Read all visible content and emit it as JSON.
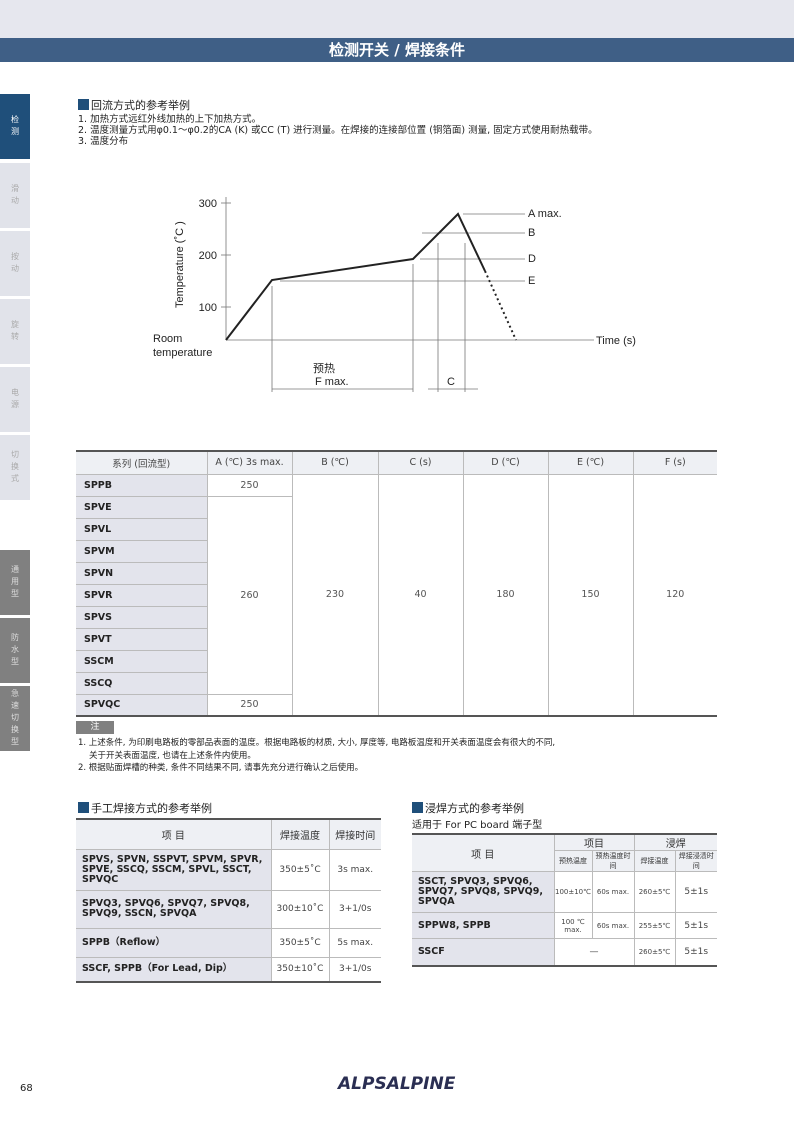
{
  "header": {
    "title": "检测开关 / 焊接条件"
  },
  "sidebar": {
    "tabs": [
      {
        "label": "检测",
        "state": "active"
      },
      {
        "label": "滑动",
        "state": "inactive"
      },
      {
        "label": "按动",
        "state": "inactive"
      },
      {
        "label": "旋转",
        "state": "inactive"
      },
      {
        "label": "电源",
        "state": "inactive"
      },
      {
        "label": "切换式",
        "state": "inactive"
      },
      {
        "label": "通用型",
        "state": "sub"
      },
      {
        "label": "防水型",
        "state": "sub"
      },
      {
        "label": "急速切换型",
        "state": "sub"
      }
    ]
  },
  "reflow": {
    "title": "回流方式的参考举例",
    "items": [
      "1. 加热方式远红外线加热的上下加热方式。",
      "2. 温度测量方式用φ0.1～φ0.2的CA (K) 或CC (T) 进行测量。在焊接的连接部位置 (铜箔面) 测量, 固定方式使用耐热载带。",
      "3. 温度分布"
    ]
  },
  "chart_data": {
    "type": "line",
    "ylabel": "Temperature (˚C )",
    "xlabel": "Time (s)",
    "y_ticks": [
      "300",
      "200",
      "100"
    ],
    "y_origin_label": "Room temperature",
    "profile_points_celsius": [
      36,
      150,
      190,
      278,
      165,
      36
    ],
    "levels": {
      "A max.": 278,
      "B": 240,
      "D": 190,
      "E": 150
    },
    "interval_labels": {
      "preheat": "预热",
      "F": "F max.",
      "C": "C"
    }
  },
  "reflow_table": {
    "headers": [
      "系列 (回流型)",
      "A (℃) 3s max.",
      "B (℃)",
      "C (s)",
      "D (℃)",
      "E (℃)",
      "F (s)"
    ],
    "series": [
      "SPPB",
      "SPVE",
      "SPVL",
      "SPVM",
      "SPVN",
      "SPVR",
      "SPVS",
      "SPVT",
      "SSCM",
      "SSCQ",
      "SPVQC"
    ],
    "A": {
      "SPPB": "250",
      "middle": "260",
      "SPVQC": "250"
    },
    "B": "230",
    "C": "40",
    "D": "180",
    "E": "150",
    "F": "120"
  },
  "notes": {
    "tag": "注",
    "items": [
      "1. 上述条件, 为印刷电路板的零部品表面的温度。根据电路板的材质, 大小, 厚度等, 电路板温度和开关表面温度会有很大的不同,",
      "关于开关表面温度, 也请在上述条件内使用。",
      "2. 根据贴面焊槽的种类, 条件不同结果不同, 请事先充分进行确认之后使用。"
    ]
  },
  "manual": {
    "title": "手工焊接方式的参考举例",
    "headers": [
      "项 目",
      "焊接温度",
      "焊接时间"
    ],
    "rows": [
      [
        "SPVS, SPVN, SSPVT, SPVM, SPVR, SPVE, SSCQ, SSCM, SPVL, SSCT, SPVQC",
        "350±5˚C",
        "3s max."
      ],
      [
        "SPVQ3, SPVQ6, SPVQ7, SPVQ8, SPVQ9, SSCN, SPVQA",
        "300±10˚C",
        "3+1/0s"
      ],
      [
        "SPPB（Reflow）",
        "350±5˚C",
        "5s max."
      ],
      [
        "SSCF, SPPB（For Lead, Dip）",
        "350±10˚C",
        "3+1/0s"
      ]
    ]
  },
  "dip": {
    "title": "浸焊方式的参考举例",
    "subtitle": "适用于 For PC board 端子型",
    "headers": {
      "item": "项 目",
      "group1": "项目",
      "group2": "浸焊",
      "sub": [
        "预热温度",
        "预热温度时间",
        "焊接温度",
        "焊接浸渍时间"
      ]
    },
    "rows": [
      [
        "SSCT, SPVQ3, SPVQ6, SPVQ7, SPVQ8, SPVQ9, SPVQA",
        "100±10℃",
        "60s max.",
        "260±5℃",
        "5±1s"
      ],
      [
        "SPPW8, SPPB",
        "100 ℃ max.",
        "60s max.",
        "255±5℃",
        "5±1s"
      ],
      [
        "SSCF",
        "—",
        "260±5℃",
        "5±1s"
      ]
    ]
  },
  "footer": {
    "page": "68",
    "logo": "ALPSALPINE"
  },
  "colors": {
    "accent": "#1f4f7a",
    "titlebar": "#3f5f86"
  }
}
